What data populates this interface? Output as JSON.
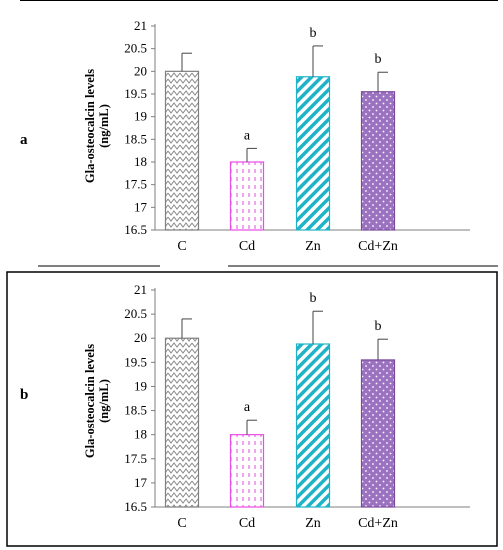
{
  "colors": {
    "c": "#7f7f7f",
    "cd": "#e64de6",
    "zn": "#1fb3c8",
    "cdzn": "#7a4a9c",
    "cdzn_fill": "#9b72c0",
    "error": "#444444",
    "axis": "#7f7f7f",
    "frame": "#000000"
  },
  "chart_data": [
    {
      "type": "bar",
      "panel_label": "a",
      "ylabel": "Gla-osteocalcin levels (ng/mL)",
      "ylabel_lines": [
        "Gla-osteocalcin levels",
        "(ng/mL)"
      ],
      "xlabel": "",
      "categories": [
        "C",
        "Cd",
        "Zn",
        "Cd+Zn"
      ],
      "values": [
        20.0,
        18.0,
        19.88,
        19.55
      ],
      "errors": [
        0.4,
        0.3,
        0.68,
        0.43
      ],
      "sig_labels": [
        "",
        "a",
        "b",
        "b"
      ],
      "patterns": [
        "zigzag",
        "dashes",
        "diagonal-stripes",
        "dots"
      ],
      "ylim": [
        16.5,
        21
      ],
      "yticks": [
        "16.5",
        "17",
        "17.5",
        "18",
        "18.5",
        "19",
        "19.5",
        "20",
        "20.5",
        "21"
      ],
      "grid": false,
      "legend": "none"
    },
    {
      "type": "bar",
      "panel_label": "b",
      "ylabel": "Gla-osteocalcin levels (ng/mL)",
      "ylabel_lines": [
        "Gla-osteocalcin levels",
        "(ng/mL)"
      ],
      "xlabel": "",
      "categories": [
        "C",
        "Cd",
        "Zn",
        "Cd+Zn"
      ],
      "values": [
        20.0,
        18.0,
        19.88,
        19.55
      ],
      "errors": [
        0.4,
        0.3,
        0.68,
        0.43
      ],
      "sig_labels": [
        "",
        "a",
        "b",
        "b"
      ],
      "patterns": [
        "zigzag",
        "dashes",
        "diagonal-stripes",
        "dots"
      ],
      "ylim": [
        16.5,
        21
      ],
      "yticks": [
        "16.5",
        "17",
        "17.5",
        "18",
        "18.5",
        "19",
        "19.5",
        "20",
        "20.5",
        "21"
      ],
      "grid": false,
      "legend": "none"
    }
  ]
}
